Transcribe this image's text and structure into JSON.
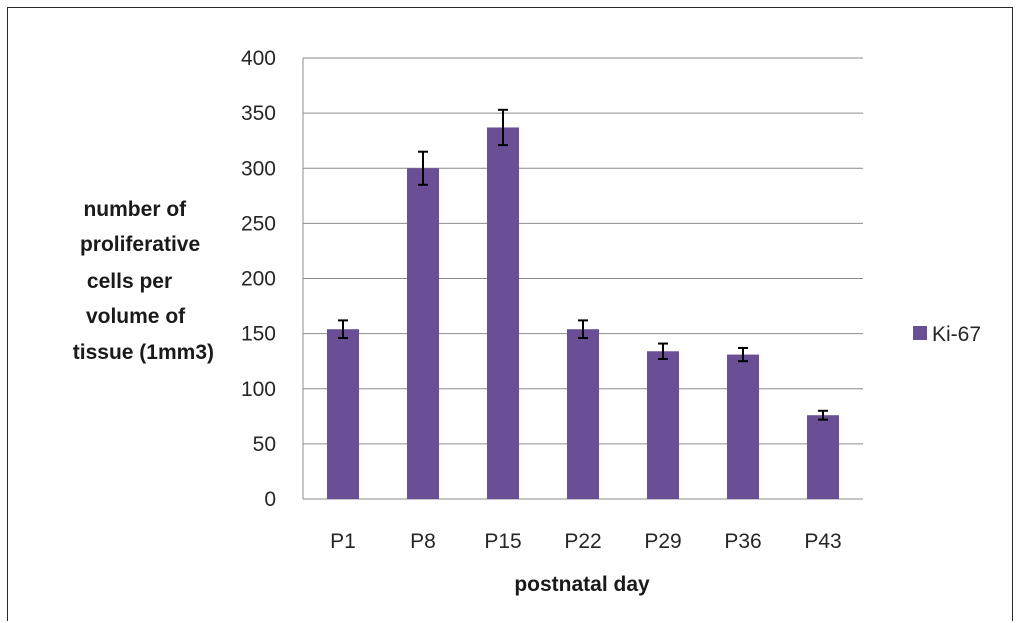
{
  "chart_data": {
    "type": "bar",
    "categories": [
      "P1",
      "P8",
      "P15",
      "P22",
      "P29",
      "P36",
      "P43"
    ],
    "series": [
      {
        "name": "Ki-67",
        "values": [
          154,
          300,
          337,
          154,
          134,
          131,
          76
        ],
        "errors": [
          8,
          15,
          16,
          8,
          7,
          6,
          4
        ]
      }
    ],
    "ylabel_lines": [
      "number of",
      "proliferative",
      "cells per",
      "volume of",
      "tissue (1mm3)"
    ],
    "xlabel": "postnatal day",
    "ylim": [
      0,
      400
    ],
    "yticks": [
      0,
      50,
      100,
      150,
      200,
      250,
      300,
      350,
      400
    ],
    "grid": true,
    "legend_position": "right",
    "colors": {
      "bar": "#6a4e96",
      "grid": "#8c8c8c",
      "error": "#000000"
    }
  }
}
